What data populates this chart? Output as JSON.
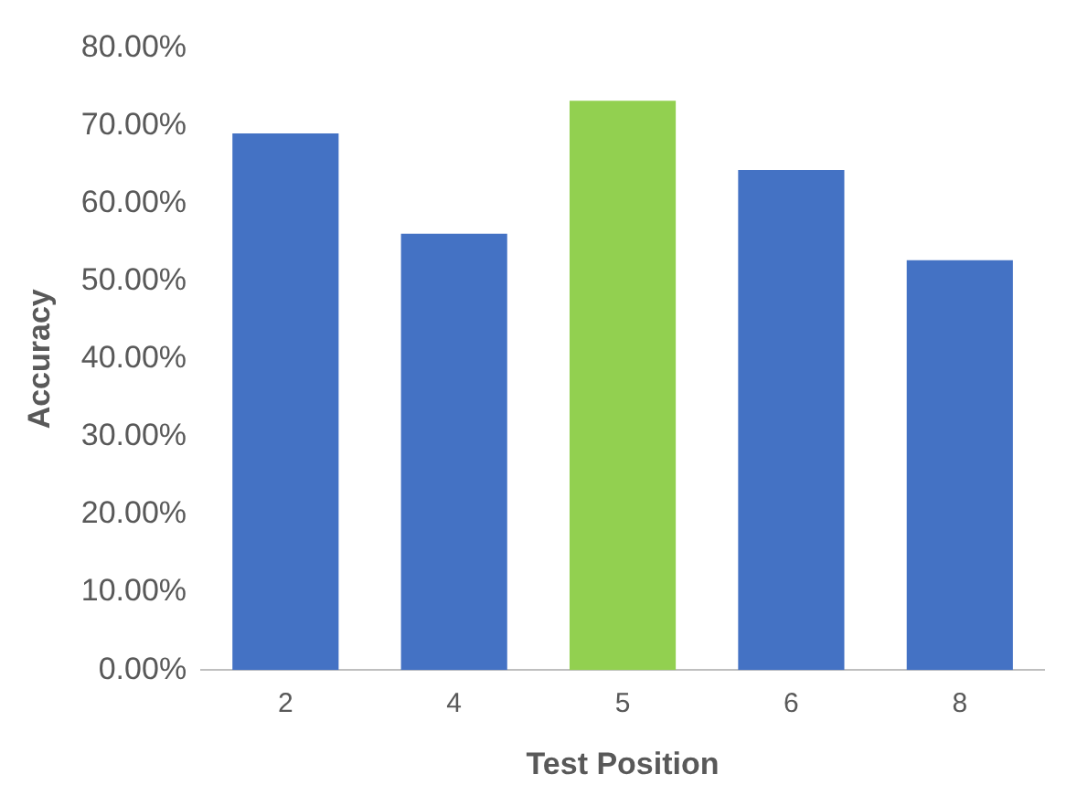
{
  "chart_data": {
    "type": "bar",
    "xlabel": "Test Position",
    "ylabel": "Accuracy",
    "categories": [
      "2",
      "4",
      "5",
      "6",
      "8"
    ],
    "values": [
      69,
      56.1,
      73.2,
      64.3,
      52.7
    ],
    "colors": [
      "#4472c4",
      "#4472c4",
      "#92d050",
      "#4472c4",
      "#4472c4"
    ],
    "ylim": [
      0,
      80
    ],
    "yticks": [
      {
        "value": 0,
        "label": "0.00%"
      },
      {
        "value": 10,
        "label": "10.00%"
      },
      {
        "value": 20,
        "label": "20.00%"
      },
      {
        "value": 30,
        "label": "30.00%"
      },
      {
        "value": 40,
        "label": "40.00%"
      },
      {
        "value": 50,
        "label": "50.00%"
      },
      {
        "value": 60,
        "label": "60.00%"
      },
      {
        "value": 70,
        "label": "70.00%"
      },
      {
        "value": 80,
        "label": "80.00%"
      }
    ],
    "grid": false,
    "legend": false
  }
}
